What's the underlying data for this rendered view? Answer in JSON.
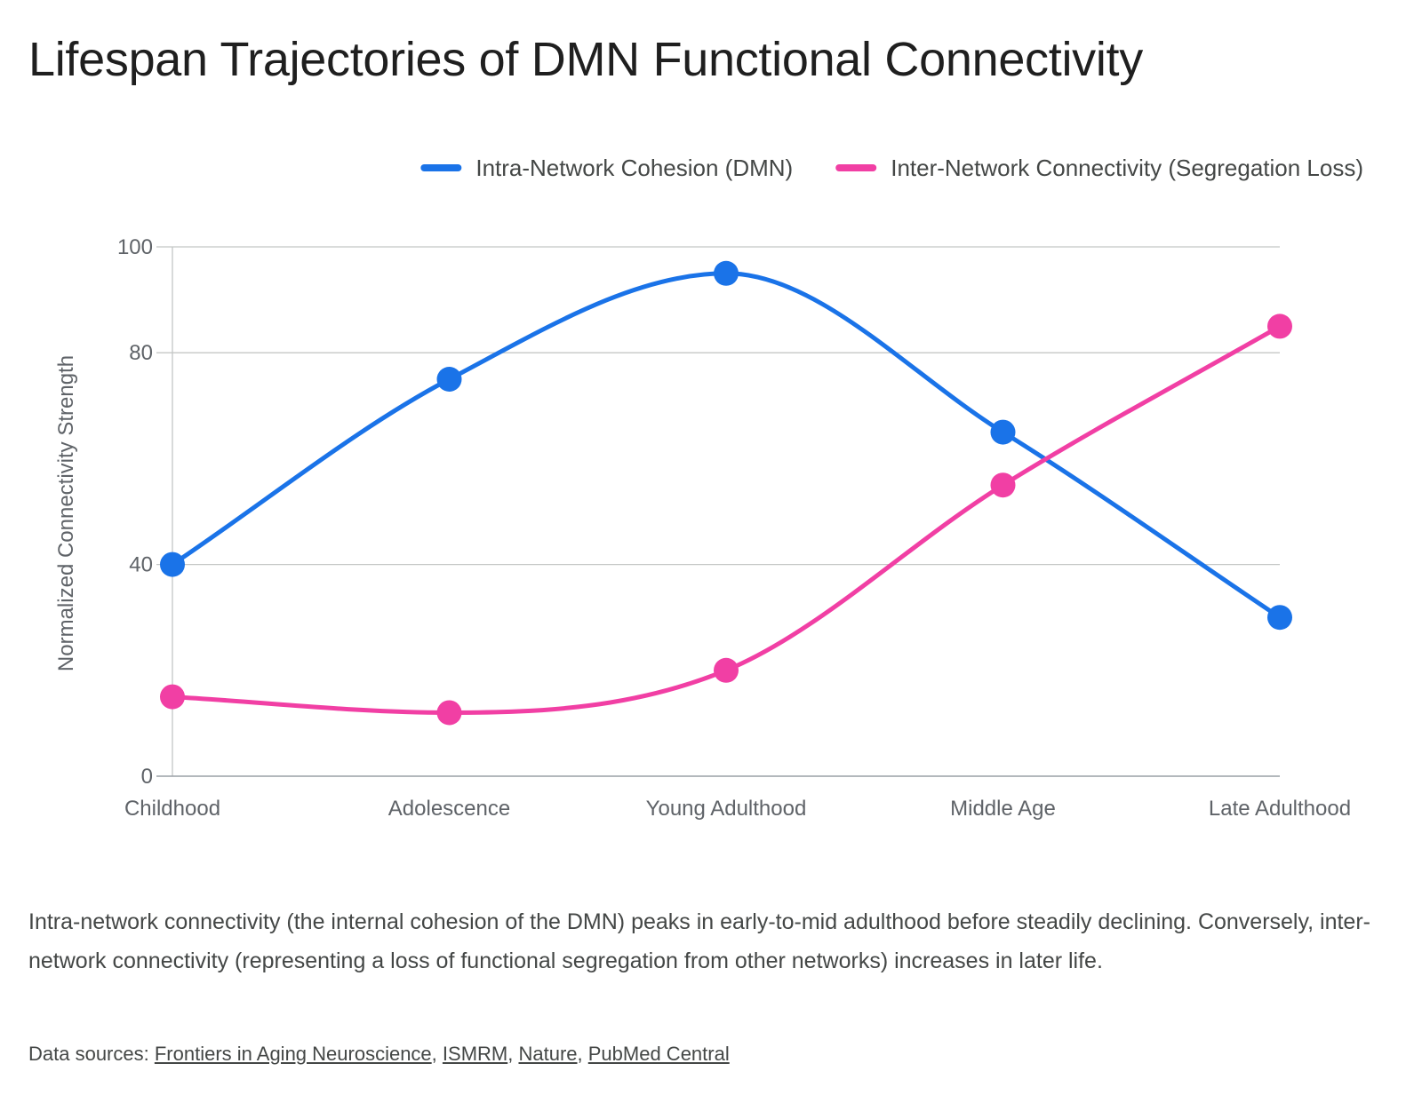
{
  "title": "Lifespan Trajectories of DMN Functional Connectivity",
  "caption": "Intra-network connectivity (the internal cohesion of the DMN) peaks in early-to-mid adulthood before steadily declining. Conversely, inter-network connectivity (representing a loss of functional segregation from other networks) increases in later life.",
  "sources": {
    "prefix": "Data sources: ",
    "links": [
      "Frontiers in Aging Neuroscience",
      "ISMRM",
      "Nature",
      "PubMed Central"
    ],
    "separator": ", "
  },
  "chart_data": {
    "type": "line",
    "curve": "smooth",
    "title": "Lifespan Trajectories of DMN Functional Connectivity",
    "xlabel": "",
    "ylabel": "Normalized Connectivity Strength",
    "categories": [
      "Childhood",
      "Adolescence",
      "Young Adulthood",
      "Middle Age",
      "Late Adulthood"
    ],
    "ylim": [
      0,
      100
    ],
    "yticks": [
      0,
      40,
      80,
      100
    ],
    "grid": true,
    "legend_position": "top-right",
    "series": [
      {
        "name": "Intra-Network Cohesion (DMN)",
        "color": "#1a73e8",
        "values": [
          40,
          75,
          95,
          65,
          30
        ]
      },
      {
        "name": "Inter-Network Connectivity (Segregation Loss)",
        "color": "#f13fa4",
        "values": [
          15,
          12,
          20,
          55,
          85
        ]
      }
    ]
  }
}
